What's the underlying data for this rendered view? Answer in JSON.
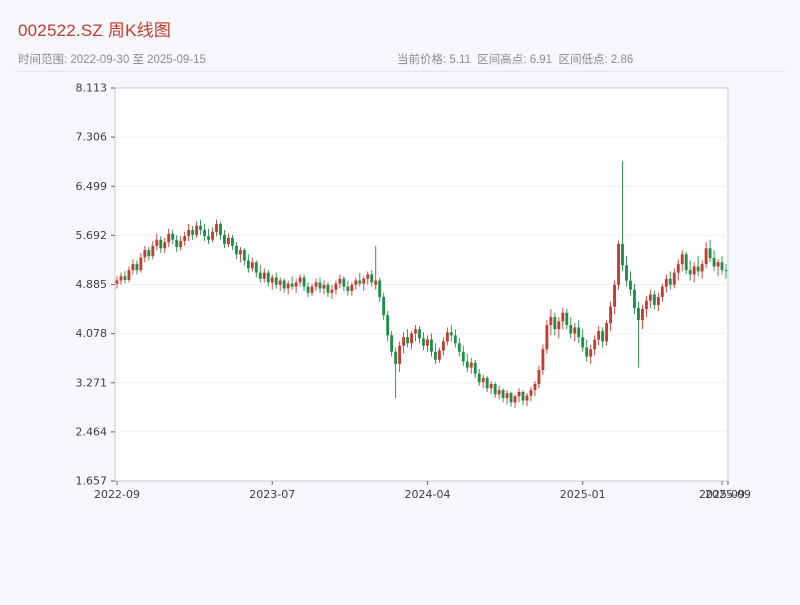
{
  "header": {
    "title": "002522.SZ 周K线图",
    "range_label": "时间范围: 2022-09-30 至 2025-09-15",
    "stats_label": "当前价格: 5.11  区间高点: 6.91  区间低点: 2.86"
  },
  "colors": {
    "title": "#c0392b",
    "axis_text": "#3d3d45",
    "grid": "#f0f1f6",
    "plot_border": "#c9c9d2",
    "plot_bg": "#ffffff"
  },
  "chart_data": {
    "type": "candlestick",
    "title": "002522.SZ 周K线图",
    "symbol": "002522.SZ",
    "interval": "weekly",
    "x_start": "2022-09-30",
    "x_end": "2025-09-15",
    "current_price": 5.11,
    "range_high": 6.91,
    "range_low": 2.86,
    "xlabel": "",
    "ylabel": "",
    "ylim": [
      1.657,
      8.113
    ],
    "y_ticks": [
      8.113,
      7.306,
      6.499,
      5.692,
      4.885,
      4.078,
      3.271,
      2.464,
      1.657
    ],
    "x_ticks": [
      {
        "label": "2022-09",
        "index": 0
      },
      {
        "label": "2023-07",
        "index": 39
      },
      {
        "label": "2024-04",
        "index": 78
      },
      {
        "label": "2025-01",
        "index": 117
      },
      {
        "label": "2025-09",
        "index": 152
      },
      {
        "label": "2025-09",
        "index": 154
      }
    ],
    "up_color": "#c43b30",
    "down_color": "#1f8e48",
    "candles": [
      [
        4.9,
        5.02,
        4.82,
        4.95
      ],
      [
        4.95,
        5.08,
        4.88,
        5.02
      ],
      [
        5.02,
        5.1,
        4.9,
        4.96
      ],
      [
        4.96,
        5.18,
        4.92,
        5.12
      ],
      [
        5.12,
        5.3,
        5.05,
        5.22
      ],
      [
        5.22,
        5.28,
        5.05,
        5.12
      ],
      [
        5.12,
        5.4,
        5.08,
        5.33
      ],
      [
        5.33,
        5.52,
        5.25,
        5.45
      ],
      [
        5.45,
        5.5,
        5.28,
        5.35
      ],
      [
        5.35,
        5.6,
        5.3,
        5.52
      ],
      [
        5.52,
        5.72,
        5.45,
        5.62
      ],
      [
        5.62,
        5.68,
        5.4,
        5.48
      ],
      [
        5.48,
        5.65,
        5.4,
        5.58
      ],
      [
        5.58,
        5.8,
        5.5,
        5.72
      ],
      [
        5.72,
        5.78,
        5.55,
        5.62
      ],
      [
        5.62,
        5.7,
        5.42,
        5.5
      ],
      [
        5.5,
        5.68,
        5.45,
        5.6
      ],
      [
        5.6,
        5.75,
        5.52,
        5.68
      ],
      [
        5.68,
        5.88,
        5.6,
        5.78
      ],
      [
        5.78,
        5.85,
        5.62,
        5.7
      ],
      [
        5.7,
        5.92,
        5.65,
        5.85
      ],
      [
        5.85,
        5.95,
        5.7,
        5.78
      ],
      [
        5.78,
        5.88,
        5.6,
        5.68
      ],
      [
        5.68,
        5.8,
        5.55,
        5.62
      ],
      [
        5.62,
        5.82,
        5.58,
        5.75
      ],
      [
        5.75,
        5.95,
        5.68,
        5.88
      ],
      [
        5.88,
        5.92,
        5.62,
        5.7
      ],
      [
        5.7,
        5.78,
        5.48,
        5.55
      ],
      [
        5.55,
        5.72,
        5.5,
        5.65
      ],
      [
        5.65,
        5.7,
        5.45,
        5.52
      ],
      [
        5.52,
        5.58,
        5.3,
        5.38
      ],
      [
        5.38,
        5.5,
        5.25,
        5.45
      ],
      [
        5.45,
        5.48,
        5.2,
        5.28
      ],
      [
        5.28,
        5.38,
        5.08,
        5.15
      ],
      [
        5.15,
        5.32,
        5.1,
        5.25
      ],
      [
        5.25,
        5.28,
        5.0,
        5.08
      ],
      [
        5.08,
        5.2,
        4.92,
        4.98
      ],
      [
        4.98,
        5.15,
        4.92,
        5.08
      ],
      [
        5.08,
        5.12,
        4.85,
        4.92
      ],
      [
        4.92,
        5.05,
        4.8,
        5.0
      ],
      [
        5.0,
        5.08,
        4.82,
        4.88
      ],
      [
        4.88,
        5.0,
        4.78,
        4.95
      ],
      [
        4.95,
        4.98,
        4.75,
        4.82
      ],
      [
        4.82,
        4.95,
        4.72,
        4.9
      ],
      [
        4.9,
        5.02,
        4.8,
        4.85
      ],
      [
        4.85,
        4.98,
        4.75,
        4.92
      ],
      [
        4.92,
        5.05,
        4.85,
        5.0
      ],
      [
        5.0,
        5.05,
        4.78,
        4.85
      ],
      [
        4.85,
        4.92,
        4.68,
        4.75
      ],
      [
        4.75,
        4.9,
        4.7,
        4.85
      ],
      [
        4.85,
        4.98,
        4.78,
        4.92
      ],
      [
        4.92,
        5.0,
        4.75,
        4.82
      ],
      [
        4.82,
        4.95,
        4.72,
        4.88
      ],
      [
        4.88,
        4.92,
        4.68,
        4.75
      ],
      [
        4.75,
        4.88,
        4.65,
        4.8
      ],
      [
        4.8,
        4.95,
        4.72,
        4.9
      ],
      [
        4.9,
        5.05,
        4.82,
        4.98
      ],
      [
        4.98,
        5.02,
        4.78,
        4.85
      ],
      [
        4.85,
        4.95,
        4.7,
        4.78
      ],
      [
        4.78,
        4.92,
        4.7,
        4.88
      ],
      [
        4.88,
        5.0,
        4.8,
        4.95
      ],
      [
        4.95,
        5.08,
        4.85,
        4.9
      ],
      [
        4.9,
        5.02,
        4.78,
        4.98
      ],
      [
        4.98,
        5.1,
        4.88,
        5.05
      ],
      [
        5.05,
        5.12,
        4.85,
        4.92
      ],
      [
        4.88,
        5.52,
        4.8,
        4.95
      ],
      [
        4.95,
        5.0,
        4.6,
        4.68
      ],
      [
        4.68,
        4.75,
        4.3,
        4.38
      ],
      [
        4.38,
        4.45,
        3.95,
        4.05
      ],
      [
        4.05,
        4.12,
        3.7,
        3.78
      ],
      [
        3.78,
        3.85,
        3.02,
        3.58
      ],
      [
        3.58,
        3.95,
        3.45,
        3.88
      ],
      [
        3.88,
        4.1,
        3.75,
        4.02
      ],
      [
        4.02,
        4.15,
        3.85,
        3.92
      ],
      [
        3.92,
        4.12,
        3.82,
        4.08
      ],
      [
        4.08,
        4.22,
        3.95,
        4.15
      ],
      [
        4.15,
        4.2,
        3.92,
        4.0
      ],
      [
        4.0,
        4.1,
        3.8,
        3.88
      ],
      [
        3.88,
        4.05,
        3.78,
        3.98
      ],
      [
        3.98,
        4.08,
        3.7,
        3.78
      ],
      [
        3.78,
        3.92,
        3.58,
        3.65
      ],
      [
        3.65,
        3.85,
        3.6,
        3.8
      ],
      [
        3.8,
        4.02,
        3.72,
        3.95
      ],
      [
        3.95,
        4.18,
        3.88,
        4.1
      ],
      [
        4.1,
        4.22,
        3.95,
        4.05
      ],
      [
        4.05,
        4.15,
        3.85,
        3.92
      ],
      [
        3.92,
        4.0,
        3.7,
        3.78
      ],
      [
        3.78,
        3.88,
        3.55,
        3.62
      ],
      [
        3.62,
        3.75,
        3.45,
        3.52
      ],
      [
        3.52,
        3.68,
        3.42,
        3.6
      ],
      [
        3.6,
        3.65,
        3.35,
        3.42
      ],
      [
        3.42,
        3.5,
        3.22,
        3.28
      ],
      [
        3.28,
        3.4,
        3.18,
        3.35
      ],
      [
        3.35,
        3.38,
        3.12,
        3.18
      ],
      [
        3.18,
        3.3,
        3.08,
        3.25
      ],
      [
        3.25,
        3.28,
        3.02,
        3.08
      ],
      [
        3.08,
        3.22,
        3.0,
        3.15
      ],
      [
        3.15,
        3.18,
        2.95,
        3.02
      ],
      [
        3.02,
        3.15,
        2.92,
        3.1
      ],
      [
        3.1,
        3.12,
        2.88,
        2.95
      ],
      [
        2.95,
        3.08,
        2.86,
        3.05
      ],
      [
        3.05,
        3.18,
        2.95,
        3.12
      ],
      [
        3.12,
        3.15,
        2.9,
        2.98
      ],
      [
        2.98,
        3.1,
        2.88,
        3.06
      ],
      [
        3.06,
        3.2,
        2.96,
        3.15
      ],
      [
        3.15,
        3.3,
        3.05,
        3.25
      ],
      [
        3.25,
        3.55,
        3.18,
        3.48
      ],
      [
        3.48,
        3.9,
        3.4,
        3.82
      ],
      [
        3.82,
        4.3,
        3.75,
        4.22
      ],
      [
        4.22,
        4.48,
        4.05,
        4.35
      ],
      [
        4.35,
        4.42,
        4.05,
        4.15
      ],
      [
        4.15,
        4.35,
        4.0,
        4.28
      ],
      [
        4.28,
        4.5,
        4.15,
        4.42
      ],
      [
        4.42,
        4.48,
        4.15,
        4.22
      ],
      [
        4.22,
        4.35,
        4.0,
        4.08
      ],
      [
        4.08,
        4.25,
        3.95,
        4.18
      ],
      [
        4.18,
        4.3,
        3.92,
        4.02
      ],
      [
        4.02,
        4.15,
        3.78,
        3.85
      ],
      [
        3.85,
        3.98,
        3.62,
        3.7
      ],
      [
        3.7,
        3.9,
        3.58,
        3.82
      ],
      [
        3.82,
        4.05,
        3.72,
        3.98
      ],
      [
        3.98,
        4.2,
        3.88,
        4.12
      ],
      [
        4.12,
        4.18,
        3.85,
        3.95
      ],
      [
        3.95,
        4.3,
        3.88,
        4.25
      ],
      [
        4.25,
        4.6,
        4.12,
        4.52
      ],
      [
        4.52,
        4.95,
        4.4,
        4.88
      ],
      [
        4.88,
        5.6,
        4.8,
        5.55
      ],
      [
        5.55,
        6.91,
        5.1,
        5.2
      ],
      [
        5.2,
        5.35,
        4.85,
        4.95
      ],
      [
        4.95,
        5.1,
        4.7,
        4.8
      ],
      [
        4.8,
        4.9,
        4.4,
        4.5
      ],
      [
        4.5,
        4.6,
        3.52,
        4.3
      ],
      [
        4.3,
        4.55,
        4.15,
        4.48
      ],
      [
        4.48,
        4.7,
        4.35,
        4.62
      ],
      [
        4.62,
        4.8,
        4.5,
        4.72
      ],
      [
        4.72,
        4.78,
        4.48,
        4.55
      ],
      [
        4.55,
        4.75,
        4.45,
        4.68
      ],
      [
        4.68,
        4.9,
        4.6,
        4.85
      ],
      [
        4.85,
        5.05,
        4.75,
        4.98
      ],
      [
        4.98,
        5.1,
        4.8,
        4.88
      ],
      [
        4.88,
        5.15,
        4.82,
        5.08
      ],
      [
        5.08,
        5.3,
        4.95,
        5.22
      ],
      [
        5.22,
        5.45,
        5.1,
        5.38
      ],
      [
        5.38,
        5.42,
        5.05,
        5.12
      ],
      [
        5.12,
        5.28,
        4.95,
        5.05
      ],
      [
        5.05,
        5.25,
        4.92,
        5.18
      ],
      [
        5.18,
        5.35,
        5.02,
        5.1
      ],
      [
        5.1,
        5.28,
        4.98,
        5.22
      ],
      [
        5.22,
        5.58,
        5.15,
        5.48
      ],
      [
        5.48,
        5.62,
        5.25,
        5.32
      ],
      [
        5.32,
        5.45,
        5.1,
        5.18
      ],
      [
        5.18,
        5.3,
        5.02,
        5.25
      ],
      [
        5.25,
        5.35,
        5.05,
        5.12
      ],
      [
        5.12,
        5.22,
        4.98,
        5.11
      ]
    ]
  }
}
